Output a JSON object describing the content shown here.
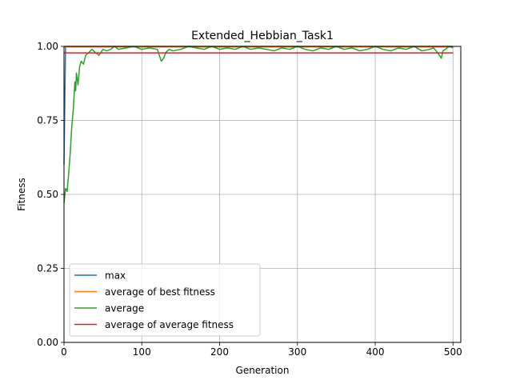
{
  "chart_data": {
    "type": "line",
    "title": "Extended_Hebbian_Task1",
    "xlabel": "Generation",
    "ylabel": "Fitness",
    "xlim": [
      0,
      510
    ],
    "ylim": [
      0,
      1.0
    ],
    "x_ticks": [
      0,
      100,
      200,
      300,
      400,
      500
    ],
    "x_tick_labels": [
      "0",
      "100",
      "200",
      "300",
      "400",
      "500"
    ],
    "y_ticks": [
      0,
      0.25,
      0.5,
      0.75,
      1.0
    ],
    "y_tick_labels": [
      "0.00",
      "0.25",
      "0.50",
      "0.75",
      "1.00"
    ],
    "grid": true,
    "legend_position": "lower-left",
    "series": [
      {
        "name": "max",
        "color": "#1f77b4",
        "x": [
          0,
          1,
          2,
          3,
          500
        ],
        "y": [
          0.6,
          0.8,
          1.0,
          1.0,
          1.0
        ]
      },
      {
        "name": "average of best fitness",
        "color": "#ff7f0e",
        "x": [
          0,
          500
        ],
        "y": [
          0.998,
          0.998
        ]
      },
      {
        "name": "average",
        "color": "#2ca02c",
        "x": [
          0,
          2,
          4,
          6,
          8,
          10,
          12,
          14,
          15,
          16,
          18,
          20,
          22,
          25,
          28,
          32,
          36,
          40,
          45,
          50,
          55,
          60,
          65,
          70,
          80,
          90,
          100,
          110,
          120,
          125,
          128,
          131,
          135,
          140,
          150,
          160,
          170,
          180,
          190,
          200,
          210,
          220,
          230,
          240,
          250,
          260,
          270,
          280,
          290,
          300,
          310,
          320,
          330,
          340,
          350,
          360,
          370,
          380,
          390,
          400,
          410,
          420,
          430,
          440,
          450,
          460,
          470,
          475,
          480,
          485,
          487,
          490,
          495,
          500
        ],
        "y": [
          0.47,
          0.52,
          0.51,
          0.57,
          0.64,
          0.73,
          0.79,
          0.88,
          0.85,
          0.91,
          0.87,
          0.93,
          0.95,
          0.94,
          0.97,
          0.98,
          0.99,
          0.98,
          0.97,
          0.99,
          0.985,
          0.99,
          1.0,
          0.99,
          0.995,
          1.0,
          0.99,
          0.995,
          0.99,
          0.95,
          0.96,
          0.98,
          0.99,
          0.985,
          0.99,
          1.0,
          0.995,
          0.99,
          1.0,
          0.99,
          0.995,
          0.99,
          1.0,
          0.99,
          0.995,
          0.99,
          0.985,
          0.995,
          0.99,
          1.0,
          0.99,
          0.985,
          0.995,
          0.99,
          1.0,
          0.99,
          0.995,
          0.985,
          0.99,
          1.0,
          0.99,
          0.985,
          0.995,
          0.99,
          1.0,
          0.985,
          0.99,
          0.995,
          0.98,
          0.96,
          0.985,
          0.99,
          1.0,
          0.995
        ]
      },
      {
        "name": "average of average fitness",
        "color": "#d62728",
        "x": [
          0,
          500
        ],
        "y": [
          0.978,
          0.978
        ]
      }
    ]
  }
}
